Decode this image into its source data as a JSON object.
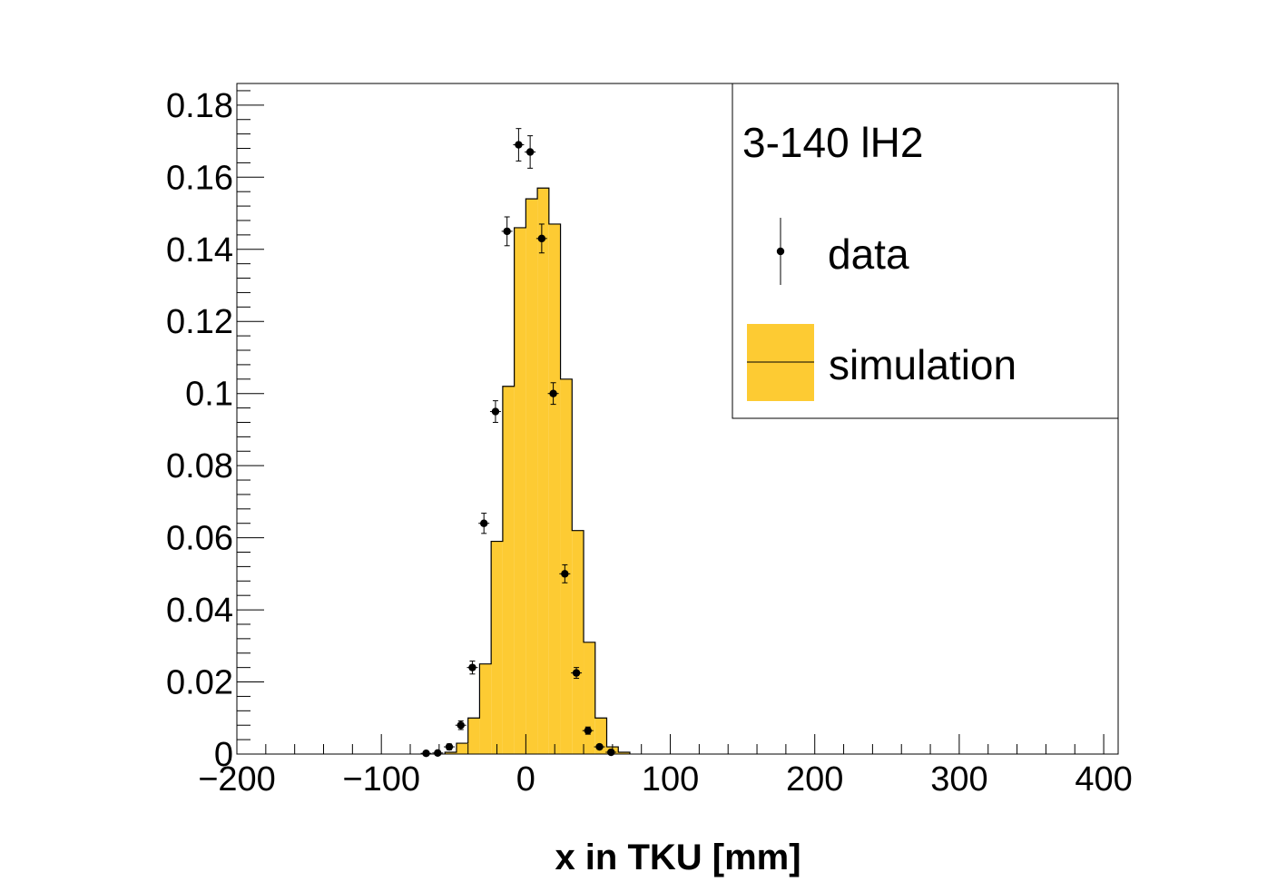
{
  "chart_data": {
    "type": "histogram",
    "title": "",
    "xlabel": "x in TKU [mm]",
    "ylabel": "",
    "xlim": [
      -200,
      410
    ],
    "ylim": [
      0,
      0.186
    ],
    "x_ticks": [
      -200,
      -100,
      0,
      100,
      200,
      300,
      400
    ],
    "x_tick_labels": [
      "−200",
      "−100",
      "0",
      "100",
      "200",
      "300",
      "400"
    ],
    "y_ticks": [
      0,
      0.02,
      0.04,
      0.06,
      0.08,
      0.1,
      0.12,
      0.14,
      0.16,
      0.18
    ],
    "y_tick_labels": [
      "0",
      "0.02",
      "0.04",
      "0.06",
      "0.08",
      "0.1",
      "0.12",
      "0.14",
      "0.16",
      "0.18"
    ],
    "colors": {
      "simulation_fill": "#fdcb33",
      "line": "#000000"
    },
    "legend": {
      "placement": "top-right",
      "header": "3-140 lH2",
      "entries": [
        {
          "key": "data",
          "label": "data"
        },
        {
          "key": "simulation",
          "label": "simulation"
        }
      ]
    },
    "simulation": {
      "bin_width": 8,
      "bin_edges_start": -56,
      "values": [
        0.0005,
        0.003,
        0.01,
        0.025,
        0.059,
        0.102,
        0.146,
        0.154,
        0.157,
        0.147,
        0.104,
        0.062,
        0.031,
        0.01,
        0.002,
        0.0005
      ]
    },
    "data_points": {
      "x": [
        -69,
        -61,
        -53,
        -45,
        -37,
        -29,
        -21,
        -13,
        -5,
        3,
        11,
        19,
        27,
        35,
        43,
        51,
        59
      ],
      "y": [
        0.0002,
        0.0003,
        0.002,
        0.008,
        0.024,
        0.064,
        0.095,
        0.145,
        0.169,
        0.167,
        0.143,
        0.1,
        0.05,
        0.0225,
        0.0065,
        0.002,
        0.0005
      ],
      "y_err": [
        0.0003,
        0.0004,
        0.0008,
        0.0012,
        0.0018,
        0.0028,
        0.003,
        0.004,
        0.0045,
        0.0045,
        0.004,
        0.003,
        0.0025,
        0.0015,
        0.001,
        0.0005,
        0.0003
      ]
    }
  }
}
